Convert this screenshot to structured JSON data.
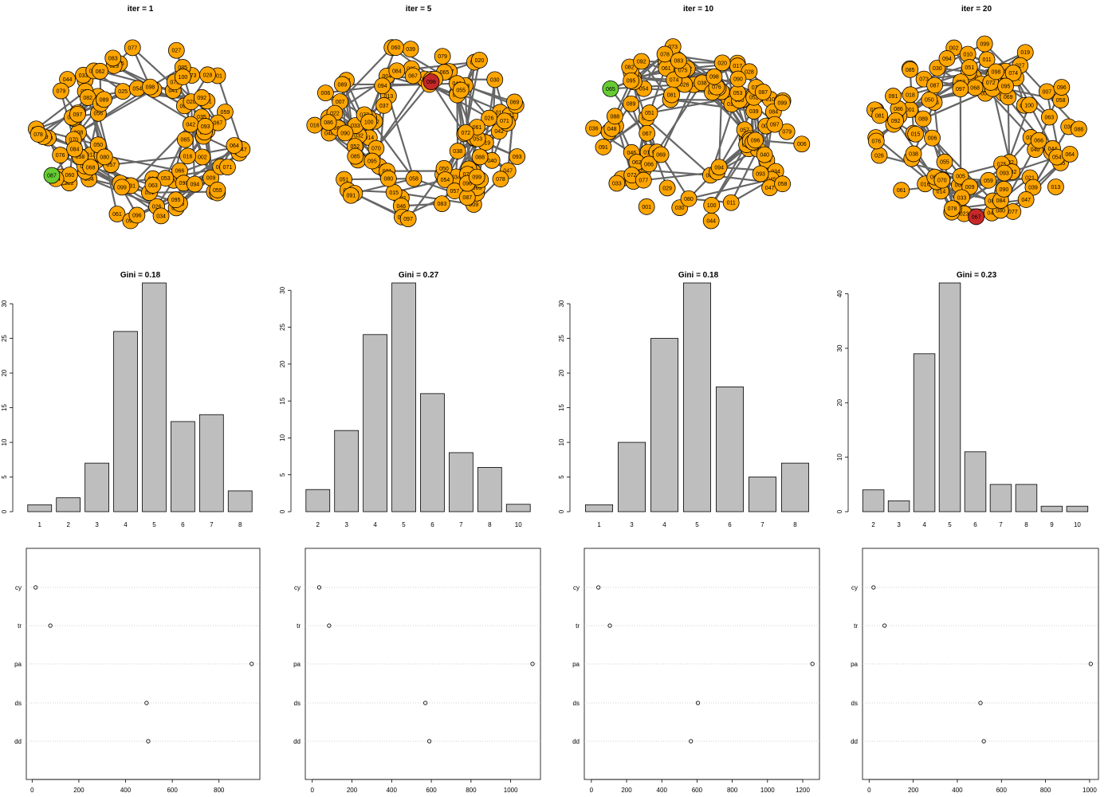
{
  "colors": {
    "node_default": "#ffa500",
    "node_red": "#c62828",
    "node_green": "#66cc33",
    "edge": "#666666",
    "bar_fill": "#bebebe",
    "grid": "#c0c0c0"
  },
  "panels": [
    {
      "iter_title": "iter = 1",
      "highlight": {
        "green": "087",
        "red": ""
      },
      "hist": {
        "type": "bar",
        "title": "Gini = 0.18",
        "categories": [
          "1",
          "2",
          "3",
          "4",
          "5",
          "6",
          "7",
          "8"
        ],
        "values": [
          1,
          2,
          7,
          26,
          33,
          13,
          14,
          3
        ],
        "yticks": [
          0,
          5,
          10,
          15,
          20,
          25,
          30
        ],
        "ylim": [
          0,
          33
        ]
      },
      "dots": {
        "type": "scatter",
        "labels": [
          "cy",
          "tr",
          "pa",
          "ds",
          "dd"
        ],
        "values": [
          15,
          78,
          940,
          490,
          497
        ],
        "xticks": [
          0,
          200,
          400,
          600,
          800
        ],
        "xlim": [
          -25,
          975
        ]
      }
    },
    {
      "iter_title": "iter = 5",
      "highlight": {
        "green": "",
        "red": "098"
      },
      "hist": {
        "type": "bar",
        "title": "Gini = 0.27",
        "categories": [
          "2",
          "3",
          "4",
          "5",
          "6",
          "7",
          "8",
          "10"
        ],
        "values": [
          3,
          11,
          24,
          31,
          16,
          8,
          6,
          1
        ],
        "yticks": [
          0,
          5,
          10,
          15,
          20,
          25,
          30
        ],
        "ylim": [
          0,
          31
        ]
      },
      "dots": {
        "type": "scatter",
        "labels": [
          "cy",
          "tr",
          "pa",
          "ds",
          "dd"
        ],
        "values": [
          35,
          85,
          1110,
          570,
          590
        ],
        "xticks": [
          0,
          200,
          400,
          600,
          800,
          1000
        ],
        "xlim": [
          -35,
          1150
        ]
      }
    },
    {
      "iter_title": "iter = 10",
      "highlight": {
        "green": "065",
        "red": ""
      },
      "hist": {
        "type": "bar",
        "title": "Gini = 0.18",
        "categories": [
          "1",
          "3",
          "4",
          "5",
          "6",
          "7",
          "8"
        ],
        "values": [
          1,
          10,
          25,
          33,
          18,
          5,
          7
        ],
        "yticks": [
          0,
          5,
          10,
          15,
          20,
          25,
          30
        ],
        "ylim": [
          0,
          33
        ]
      },
      "dots": {
        "type": "scatter",
        "labels": [
          "cy",
          "tr",
          "pa",
          "ds",
          "dd"
        ],
        "values": [
          40,
          105,
          1255,
          605,
          565
        ],
        "xticks": [
          0,
          200,
          400,
          600,
          800,
          1000,
          1200
        ],
        "xlim": [
          -40,
          1295
        ]
      }
    },
    {
      "iter_title": "iter = 20",
      "highlight": {
        "green": "",
        "red": "067"
      },
      "hist": {
        "type": "bar",
        "title": "Gini = 0.23",
        "categories": [
          "2",
          "3",
          "4",
          "5",
          "6",
          "7",
          "8",
          "9",
          "10"
        ],
        "values": [
          4,
          2,
          29,
          42,
          11,
          5,
          5,
          1,
          1
        ],
        "yticks": [
          0,
          10,
          20,
          30,
          40
        ],
        "ylim": [
          0,
          42
        ]
      },
      "dots": {
        "type": "scatter",
        "labels": [
          "cy",
          "tr",
          "pa",
          "ds",
          "dd"
        ],
        "values": [
          20,
          70,
          1005,
          505,
          520
        ],
        "xticks": [
          0,
          200,
          400,
          600,
          800,
          1000
        ],
        "xlim": [
          -30,
          1040
        ]
      }
    }
  ]
}
